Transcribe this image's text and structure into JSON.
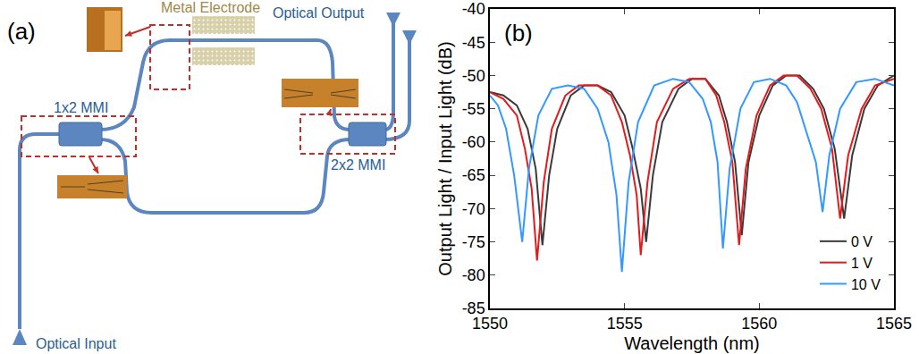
{
  "diagram": {
    "label": "(a)",
    "texts": {
      "input": "Optical Input",
      "output": "Optical Output",
      "electrode": "Metal Electrode",
      "mmi1": "1x2 MMI",
      "mmi2": "2x2 MMI"
    }
  },
  "chart_data": {
    "type": "line",
    "title": "(b)",
    "x_label": "Wavelength (nm)",
    "y_label": "Output Light / Input Light (dB)",
    "xlim": [
      1550,
      1565
    ],
    "xticks": [
      1550,
      1555,
      1560,
      1565
    ],
    "ylim": [
      -85,
      -40
    ],
    "yticks": [
      -85,
      -80,
      -75,
      -70,
      -65,
      -60,
      -55,
      -50,
      -45,
      -40
    ],
    "grid": false,
    "legend": "bottom right",
    "series": [
      {
        "name": "0 V",
        "color": "#3a3a3a",
        "x": [
          1550,
          1550.5,
          1551,
          1551.4,
          1551.7,
          1551.95,
          1552.2,
          1552.5,
          1553,
          1553.5,
          1554,
          1554.5,
          1555,
          1555.3,
          1555.6,
          1555.8,
          1556.05,
          1556.4,
          1557,
          1557.5,
          1558,
          1558.5,
          1558.8,
          1559.1,
          1559.35,
          1559.6,
          1560,
          1560.5,
          1561,
          1561.5,
          1562,
          1562.4,
          1562.8,
          1563.15,
          1563.45,
          1563.9,
          1564.4,
          1565
        ],
        "values": [
          -52.5,
          -53,
          -54.5,
          -58,
          -64,
          -75.5,
          -65,
          -58,
          -53,
          -51.5,
          -51.5,
          -52.5,
          -56,
          -61,
          -67,
          -75,
          -65,
          -57,
          -52,
          -50.5,
          -50.5,
          -53,
          -57,
          -63,
          -74,
          -63,
          -56,
          -51.5,
          -50,
          -50,
          -52,
          -55,
          -61,
          -71.5,
          -62,
          -55,
          -51.5,
          -50
        ]
      },
      {
        "name": "1 V",
        "color": "#e41a1c",
        "x": [
          1550,
          1550.5,
          1551,
          1551.3,
          1551.55,
          1551.75,
          1552.0,
          1552.3,
          1552.8,
          1553.3,
          1554,
          1554.5,
          1554.9,
          1555.2,
          1555.45,
          1555.6,
          1555.85,
          1556.2,
          1556.8,
          1557.4,
          1558,
          1558.4,
          1558.7,
          1559.0,
          1559.25,
          1559.5,
          1559.9,
          1560.4,
          1560.9,
          1561.4,
          1561.9,
          1562.3,
          1562.7,
          1563.0,
          1563.3,
          1563.8,
          1564.3,
          1565
        ],
        "values": [
          -52.5,
          -53.5,
          -56,
          -61,
          -67,
          -77.8,
          -66,
          -58,
          -53,
          -51.5,
          -51.5,
          -53,
          -57,
          -62,
          -68,
          -77,
          -66,
          -57,
          -52,
          -50.5,
          -50.5,
          -53,
          -57,
          -63,
          -75.5,
          -64,
          -56,
          -51.5,
          -50,
          -50,
          -52,
          -55,
          -61,
          -71.5,
          -62,
          -55,
          -51.5,
          -50.5
        ]
      },
      {
        "name": "10 V",
        "color": "#3399ff",
        "x": [
          1550,
          1550.3,
          1550.6,
          1550.9,
          1551.2,
          1551.45,
          1551.8,
          1552.3,
          1552.9,
          1553.5,
          1554,
          1554.4,
          1554.7,
          1554.9,
          1555.15,
          1555.5,
          1556.1,
          1556.8,
          1557.4,
          1557.9,
          1558.2,
          1558.45,
          1558.65,
          1558.9,
          1559.3,
          1559.8,
          1560.4,
          1561,
          1561.4,
          1561.8,
          1562.1,
          1562.35,
          1562.6,
          1563,
          1563.6,
          1564.3,
          1565
        ],
        "values": [
          -53,
          -54.5,
          -58,
          -65,
          -75,
          -64,
          -56,
          -52,
          -51.5,
          -52,
          -55,
          -60,
          -68,
          -79.5,
          -66,
          -57,
          -51.5,
          -50.5,
          -51,
          -53.5,
          -57,
          -63,
          -76,
          -64,
          -55,
          -51,
          -50.5,
          -51.5,
          -54,
          -59,
          -63,
          -70.5,
          -62,
          -55,
          -51,
          -50.5,
          -51.5
        ]
      }
    ]
  }
}
